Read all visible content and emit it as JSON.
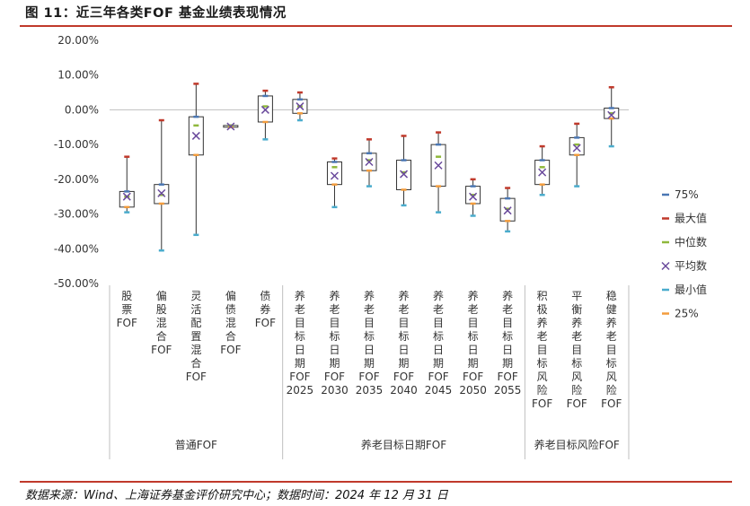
{
  "header": {
    "title": "图 11：近三年各类FOF 基金业绩表现情况"
  },
  "footer": {
    "source": "数据来源：Wind、上海证券基金评价研究中心；数据时间：2024 年 12 月 31 日"
  },
  "colors": {
    "max": "#c0392b",
    "p75": "#4a77b4",
    "median": "#8fb83c",
    "mean": "#6a4a9c",
    "min": "#4aaccd",
    "p25": "#f39c3c",
    "box": "#333333",
    "whisker": "#333333",
    "axis": "#bfbfbf"
  },
  "chart_data": {
    "type": "box",
    "title": "",
    "ylim": [
      -0.5,
      0.2
    ],
    "y_ticks": [
      0.2,
      0.1,
      0.0,
      -0.1,
      -0.2,
      -0.3,
      -0.4,
      -0.5
    ],
    "y_tick_labels": [
      "20.00%",
      "10.00%",
      "0.00%",
      "-10.00%",
      "-20.00%",
      "-30.00%",
      "-40.00%",
      "-50.00%"
    ],
    "legend_position": "right",
    "legend": [
      {
        "key": "p75",
        "label": "75%",
        "marker": "dash"
      },
      {
        "key": "max",
        "label": "最大值",
        "marker": "dash"
      },
      {
        "key": "median",
        "label": "中位数",
        "marker": "dash"
      },
      {
        "key": "mean",
        "label": "平均数",
        "marker": "x"
      },
      {
        "key": "min",
        "label": "最小值",
        "marker": "dash"
      },
      {
        "key": "p25",
        "label": "25%",
        "marker": "dash"
      }
    ],
    "categories": [
      {
        "label": "股票FOF",
        "lines": [
          "股",
          "票",
          "FOF"
        ],
        "max": -0.135,
        "p75": -0.235,
        "median": -0.25,
        "mean": -0.25,
        "p25": -0.28,
        "min": -0.295
      },
      {
        "label": "偏股混合FOF",
        "lines": [
          "偏",
          "股",
          "混",
          "合",
          "FOF"
        ],
        "max": -0.03,
        "p75": -0.215,
        "median": -0.245,
        "mean": -0.24,
        "p25": -0.27,
        "min": -0.405
      },
      {
        "label": "灵活配置混合FOF",
        "lines": [
          "灵",
          "活",
          "配",
          "置",
          "混",
          "合",
          "FOF"
        ],
        "max": 0.075,
        "p75": -0.02,
        "median": -0.045,
        "mean": -0.075,
        "p25": -0.13,
        "min": -0.36
      },
      {
        "label": "偏债混合FOF",
        "lines": [
          "偏",
          "债",
          "混",
          "合",
          "FOF"
        ],
        "max": -0.045,
        "p75": -0.045,
        "median": -0.045,
        "mean": -0.048,
        "p25": -0.05,
        "min": -0.05
      },
      {
        "label": "债券FOF",
        "lines": [
          "债",
          "券",
          "FOF"
        ],
        "max": 0.055,
        "p75": 0.04,
        "median": 0.01,
        "mean": 0.0,
        "p25": -0.035,
        "min": -0.085
      },
      {
        "label": "养老目标日期FOF 2025",
        "lines": [
          "养",
          "老",
          "目",
          "标",
          "日",
          "期",
          "FOF",
          "2025"
        ],
        "max": 0.05,
        "p75": 0.03,
        "median": 0.01,
        "mean": 0.01,
        "p25": -0.01,
        "min": -0.03
      },
      {
        "label": "养老目标日期FOF 2030",
        "lines": [
          "养",
          "老",
          "目",
          "标",
          "日",
          "期",
          "FOF",
          "2030"
        ],
        "max": -0.14,
        "p75": -0.15,
        "median": -0.165,
        "mean": -0.19,
        "p25": -0.215,
        "min": -0.28
      },
      {
        "label": "养老目标日期FOF 2035",
        "lines": [
          "养",
          "老",
          "目",
          "标",
          "日",
          "期",
          "FOF",
          "2035"
        ],
        "max": -0.085,
        "p75": -0.125,
        "median": -0.145,
        "mean": -0.15,
        "p25": -0.175,
        "min": -0.22
      },
      {
        "label": "养老目标日期FOF 2040",
        "lines": [
          "养",
          "老",
          "目",
          "标",
          "日",
          "期",
          "FOF",
          "2040"
        ],
        "max": -0.075,
        "p75": -0.145,
        "median": -0.18,
        "mean": -0.185,
        "p25": -0.23,
        "min": -0.275
      },
      {
        "label": "养老目标日期FOF 2045",
        "lines": [
          "养",
          "老",
          "目",
          "标",
          "日",
          "期",
          "FOF",
          "2045"
        ],
        "max": -0.065,
        "p75": -0.1,
        "median": -0.135,
        "mean": -0.16,
        "p25": -0.22,
        "min": -0.295
      },
      {
        "label": "养老目标日期FOF 2050",
        "lines": [
          "养",
          "老",
          "目",
          "标",
          "日",
          "期",
          "FOF",
          "2050"
        ],
        "max": -0.2,
        "p75": -0.22,
        "median": -0.245,
        "mean": -0.25,
        "p25": -0.27,
        "min": -0.305
      },
      {
        "label": "养老目标日期FOF 2055",
        "lines": [
          "养",
          "老",
          "目",
          "标",
          "日",
          "期",
          "FOF",
          "2055"
        ],
        "max": -0.225,
        "p75": -0.255,
        "median": -0.285,
        "mean": -0.29,
        "p25": -0.32,
        "min": -0.35
      },
      {
        "label": "积极养老目标风险FOF",
        "lines": [
          "积",
          "极",
          "养",
          "老",
          "目",
          "标",
          "风",
          "险",
          "FOF"
        ],
        "max": -0.105,
        "p75": -0.145,
        "median": -0.165,
        "mean": -0.18,
        "p25": -0.215,
        "min": -0.245
      },
      {
        "label": "平衡养老目标风险FOF",
        "lines": [
          "平",
          "衡",
          "养",
          "老",
          "目",
          "标",
          "风",
          "险",
          "FOF"
        ],
        "max": -0.04,
        "p75": -0.08,
        "median": -0.1,
        "mean": -0.11,
        "p25": -0.13,
        "min": -0.22
      },
      {
        "label": "稳健养老目标风险FOF",
        "lines": [
          "稳",
          "健",
          "养",
          "老",
          "目",
          "标",
          "风",
          "险",
          "FOF"
        ],
        "max": 0.065,
        "p75": 0.005,
        "median": -0.01,
        "mean": -0.015,
        "p25": -0.025,
        "min": -0.105
      }
    ],
    "groups": [
      {
        "label": "普通FOF",
        "start": 0,
        "end": 4
      },
      {
        "label": "养老目标日期FOF",
        "start": 5,
        "end": 11
      },
      {
        "label": "养老目标风险FOF",
        "start": 12,
        "end": 14
      }
    ]
  }
}
